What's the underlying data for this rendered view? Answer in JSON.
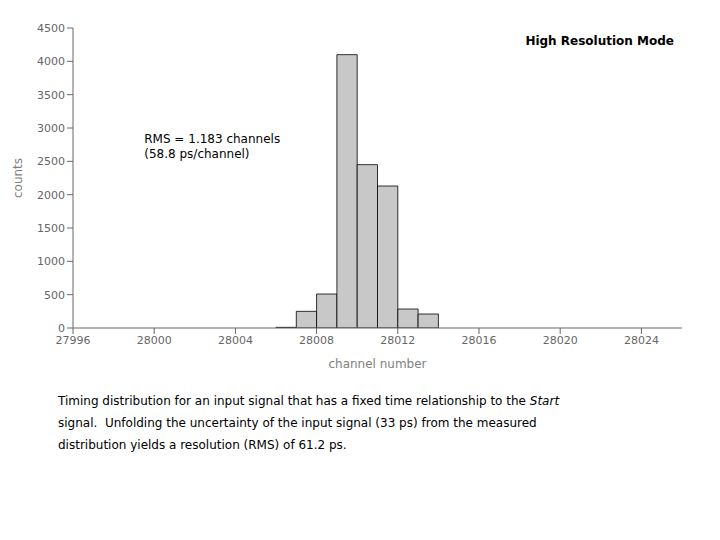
{
  "chart_data": {
    "type": "histogram",
    "bins": [
      28006,
      28007,
      28008,
      28009,
      28010,
      28011,
      28012,
      28013,
      28014
    ],
    "values": [
      10,
      250,
      510,
      4100,
      2450,
      2130,
      285,
      210
    ],
    "color": "#c8c8c8",
    "xlabel": "channel number",
    "ylabel": "counts",
    "xlim": [
      27996,
      28026
    ],
    "ylim": [
      0,
      4500
    ],
    "xticks": [
      27996,
      28000,
      28004,
      28008,
      28012,
      28016,
      28020,
      28024
    ],
    "yticks": [
      0,
      500,
      1000,
      1500,
      2000,
      2500,
      3000,
      3500,
      4000,
      4500
    ],
    "grid": false,
    "annotations": [
      "RMS = 1.183 channels",
      "(58.8 ps/channel)",
      "High Resolution Mode",
      "Timing distribution for an input signal that has a fixed time relationship to the Start",
      "signal.  Unfolding the uncertainty of the input signal (33 ps) from the measured",
      "distribution yields a resolution (RMS) of 61.2 ps."
    ]
  }
}
